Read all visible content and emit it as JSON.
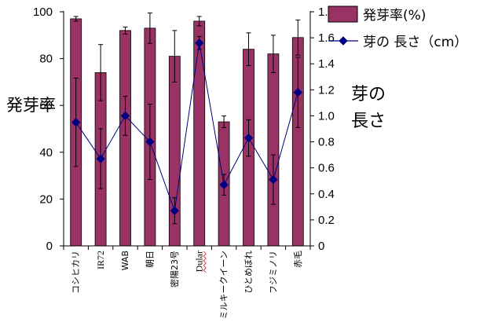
{
  "chart_data": {
    "type": "bar",
    "categories": [
      "コシヒカリ",
      "IR72",
      "WAB",
      "朝日",
      "密陽23号",
      "Dular",
      "ミルキークイーン",
      "ひとめぼれ",
      "フジミノリ",
      "赤毛"
    ],
    "series": [
      {
        "name": "発芽率(%)",
        "type": "bar",
        "axis": "left",
        "color": "#993366",
        "values": [
          97,
          74,
          92,
          93,
          81,
          96,
          53,
          84,
          82,
          89
        ],
        "errors": [
          1,
          12,
          1.5,
          6.5,
          11,
          2,
          2.5,
          7,
          8,
          7.5
        ]
      },
      {
        "name": "芽の 長さ（cm）",
        "type": "line",
        "axis": "right",
        "color": "#000080",
        "marker": "diamond",
        "values": [
          0.95,
          0.67,
          1.0,
          0.8,
          0.27,
          1.56,
          0.47,
          0.83,
          0.51,
          1.18
        ],
        "errors": [
          0.34,
          0.23,
          0.15,
          0.29,
          0.1,
          0.05,
          0.08,
          0.14,
          0.19,
          0.27
        ]
      }
    ],
    "ylabel": "発芽率",
    "y2label": "芽の長さ",
    "ylim": [
      0,
      100
    ],
    "y2lim": [
      0,
      1.8
    ],
    "yticks": [
      "100",
      "80",
      "60",
      "40",
      "20",
      "0"
    ],
    "y2ticks": [
      "1.8",
      "1.6",
      "1.4",
      "1.2",
      "1.0",
      "0.8",
      "0.6",
      "0.4",
      "0.2",
      "0"
    ],
    "grid": false,
    "legend": "top-right"
  }
}
